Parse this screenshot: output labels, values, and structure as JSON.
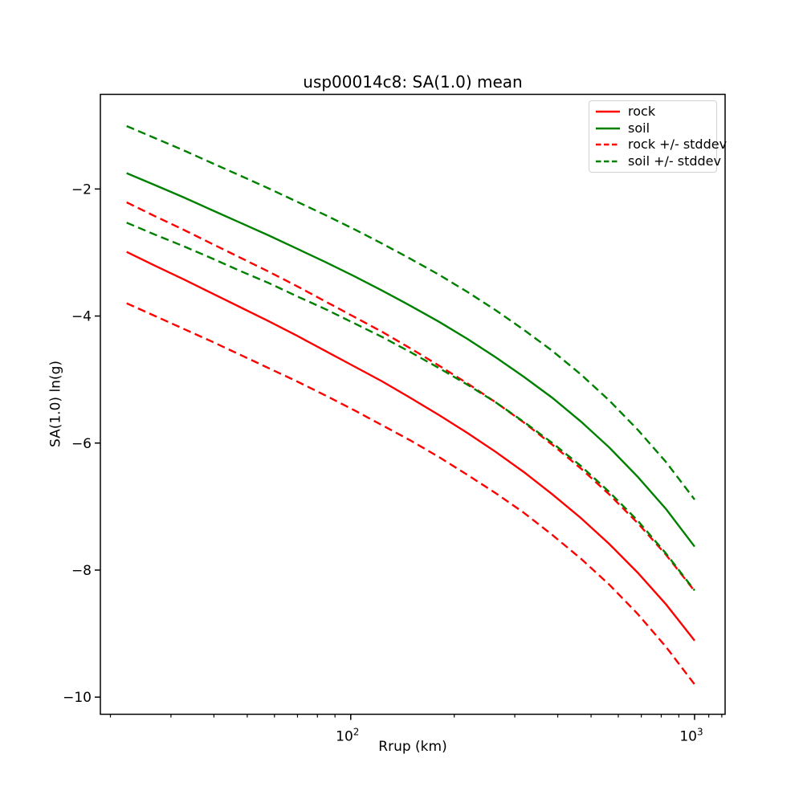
{
  "window": {
    "background_color": "#ffffff"
  },
  "chart_data": {
    "type": "line",
    "title": "usp00014c8: SA(1.0) mean",
    "xlabel": "Rrup (km)",
    "ylabel": "SA(1.0) ln(g)",
    "x_scale": "log",
    "y_scale": "linear",
    "xlim": [
      18.7,
      1227
    ],
    "ylim": [
      -10.27,
      -0.51
    ],
    "grid": false,
    "x": [
      22.3,
      27.0,
      32.6,
      39.4,
      47.7,
      57.7,
      69.8,
      84.4,
      102.1,
      123.5,
      149.3,
      180.6,
      218.4,
      264.1,
      319.4,
      386.3,
      467.2,
      565.0,
      683.3,
      826.4,
      1000.0
    ],
    "series": [
      {
        "name": "rock",
        "color": "#ff0000",
        "style": "solid",
        "values": [
          -2.99,
          -3.21,
          -3.42,
          -3.64,
          -3.86,
          -4.08,
          -4.31,
          -4.55,
          -4.79,
          -5.03,
          -5.29,
          -5.56,
          -5.84,
          -6.14,
          -6.46,
          -6.81,
          -7.18,
          -7.59,
          -8.04,
          -8.54,
          -9.11
        ]
      },
      {
        "name": "soil",
        "color": "#008000",
        "style": "solid",
        "values": [
          -1.75,
          -1.94,
          -2.13,
          -2.33,
          -2.53,
          -2.73,
          -2.94,
          -3.15,
          -3.37,
          -3.6,
          -3.84,
          -4.09,
          -4.36,
          -4.65,
          -4.96,
          -5.29,
          -5.66,
          -6.07,
          -6.53,
          -7.04,
          -7.63
        ]
      },
      {
        "name": "rock +/- stddev",
        "color": "#ff0000",
        "style": "dashed",
        "upper": [
          -2.21,
          -2.43,
          -2.64,
          -2.86,
          -3.08,
          -3.3,
          -3.53,
          -3.77,
          -4.01,
          -4.25,
          -4.51,
          -4.78,
          -5.06,
          -5.36,
          -5.68,
          -6.03,
          -6.4,
          -6.81,
          -7.26,
          -7.76,
          -8.33
        ],
        "lower": [
          -3.8,
          -4.0,
          -4.2,
          -4.4,
          -4.61,
          -4.82,
          -5.03,
          -5.25,
          -5.48,
          -5.72,
          -5.96,
          -6.22,
          -6.5,
          -6.79,
          -7.1,
          -7.45,
          -7.82,
          -8.23,
          -8.69,
          -9.21,
          -9.8
        ]
      },
      {
        "name": "soil +/- stddev",
        "color": "#008000",
        "style": "dashed",
        "upper": [
          -1.01,
          -1.2,
          -1.39,
          -1.59,
          -1.79,
          -1.99,
          -2.2,
          -2.41,
          -2.63,
          -2.86,
          -3.1,
          -3.35,
          -3.62,
          -3.91,
          -4.22,
          -4.55,
          -4.92,
          -5.33,
          -5.79,
          -6.3,
          -6.89
        ],
        "lower": [
          -2.53,
          -2.72,
          -2.9,
          -3.09,
          -3.29,
          -3.48,
          -3.69,
          -3.89,
          -4.11,
          -4.33,
          -4.57,
          -4.82,
          -5.08,
          -5.36,
          -5.67,
          -6.0,
          -6.36,
          -6.77,
          -7.22,
          -7.74,
          -8.32
        ]
      }
    ],
    "y_ticks": {
      "values": [
        -2,
        -4,
        -6,
        -8,
        -10
      ],
      "labels": [
        "−2",
        "−4",
        "−6",
        "−8",
        "−10"
      ]
    },
    "x_ticks_major": [
      {
        "value": 100,
        "base": "10",
        "exp": "2"
      },
      {
        "value": 1000,
        "base": "10",
        "exp": "3"
      }
    ],
    "x_ticks_minor": [
      20,
      30,
      40,
      50,
      60,
      70,
      80,
      90,
      200,
      300,
      400,
      500,
      600,
      700,
      800,
      900,
      1100,
      1200
    ],
    "legend": {
      "location": "upper right",
      "entries": [
        {
          "label": "rock",
          "color": "#ff0000",
          "style": "solid"
        },
        {
          "label": "soil",
          "color": "#008000",
          "style": "solid"
        },
        {
          "label": "rock +/- stddev",
          "color": "#ff0000",
          "style": "dashed"
        },
        {
          "label": "soil +/- stddev",
          "color": "#008000",
          "style": "dashed"
        }
      ]
    },
    "axis_color": "#000000"
  }
}
